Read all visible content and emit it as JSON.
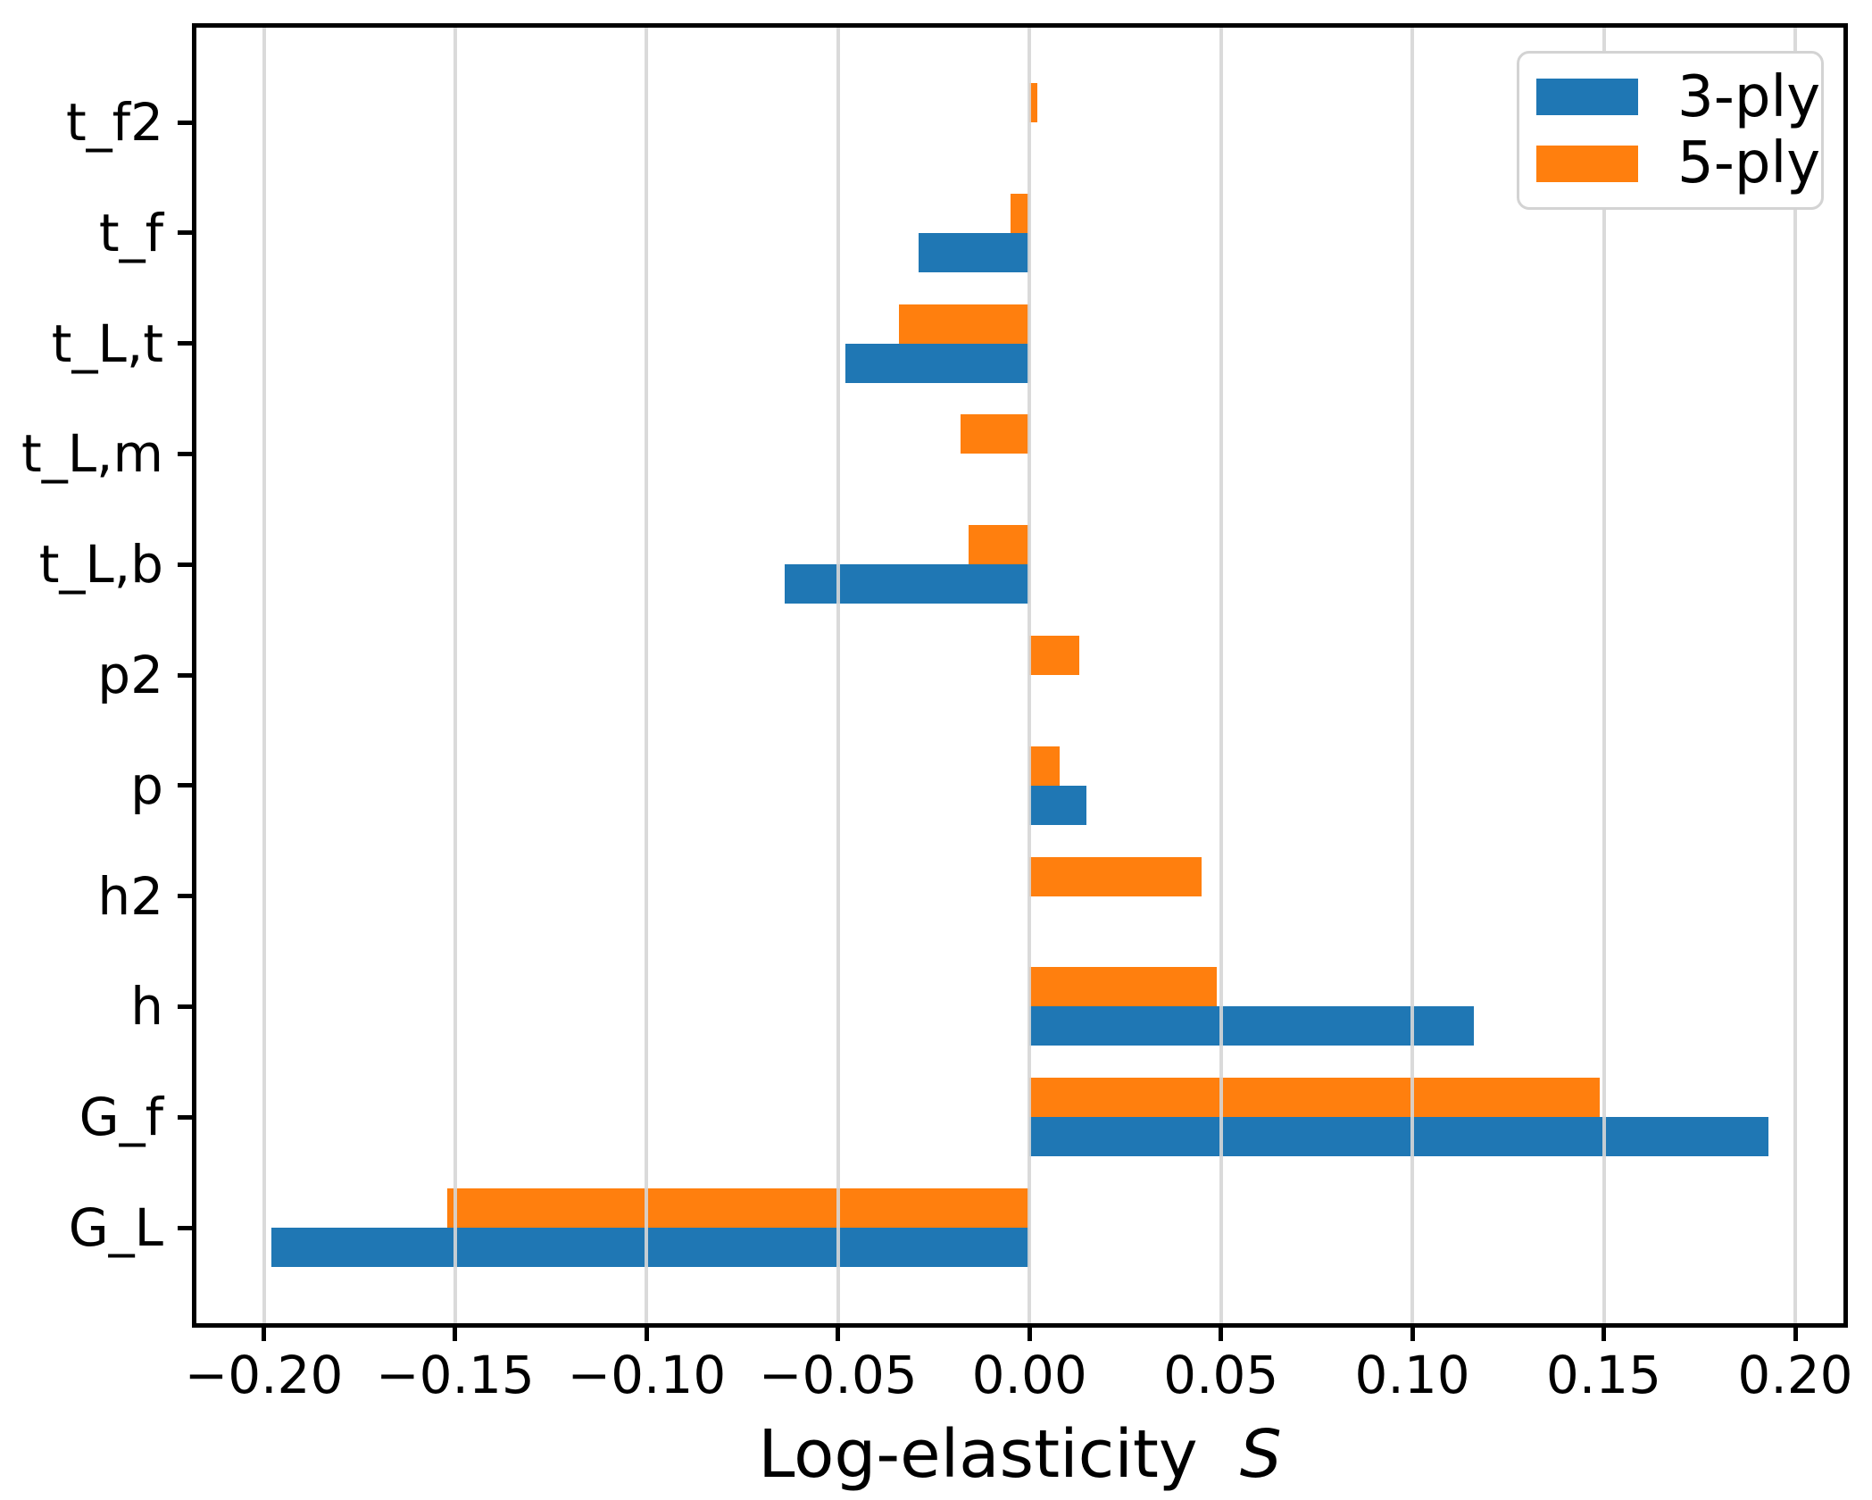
{
  "chart_data": {
    "type": "bar",
    "orientation": "horizontal",
    "title": "",
    "xlabel": "Log-elasticity",
    "xlabel_italic_suffix": "S",
    "ylabel": "",
    "categories_top_to_bottom": [
      "t_f2",
      "t_f",
      "t_L,t",
      "t_L,m",
      "t_L,b",
      "p2",
      "p",
      "h2",
      "h",
      "G_f",
      "G_L"
    ],
    "series": [
      {
        "name": "3-ply",
        "color": "#1f77b4",
        "values": [
          0.0,
          -0.029,
          -0.048,
          0.0,
          -0.064,
          0.0,
          0.015,
          0.0,
          0.116,
          0.193,
          -0.198
        ]
      },
      {
        "name": "5-ply",
        "color": "#ff7f0e",
        "values": [
          0.002,
          -0.005,
          -0.034,
          -0.018,
          -0.016,
          0.013,
          0.008,
          0.045,
          0.049,
          0.149,
          -0.152
        ]
      }
    ],
    "xlim": [
      -0.2176,
      0.2126
    ],
    "x_ticks": [
      -0.2,
      -0.15,
      -0.1,
      -0.05,
      0.0,
      0.05,
      0.1,
      0.15,
      0.2
    ],
    "x_tick_labels": [
      "−0.20",
      "−0.15",
      "−0.10",
      "−0.05",
      "0.00",
      "0.05",
      "0.10",
      "0.15",
      "0.20"
    ],
    "grid": true,
    "grid_axis": "x",
    "grid_on_top_of_bars": true,
    "legend": {
      "position": "upper right",
      "entries": [
        "3-ply",
        "5-ply"
      ]
    }
  },
  "colors": {
    "series_blue": "#1f77b4",
    "series_orange": "#ff7f0e",
    "grid": "#d6d6d6",
    "spine": "#000000",
    "legend_border": "#d3d3d3",
    "background": "#ffffff",
    "text": "#000000"
  }
}
